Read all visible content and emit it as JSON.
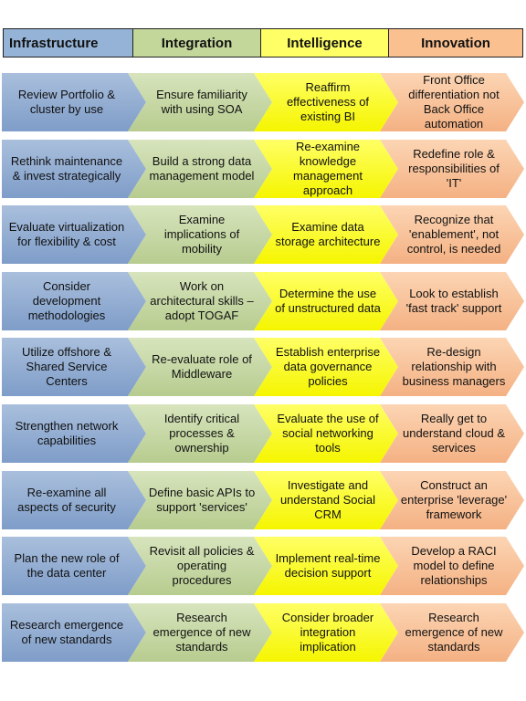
{
  "header": {
    "columns": [
      {
        "label": "Infrastructure",
        "color": "#95b3d7"
      },
      {
        "label": "Integration",
        "color": "#c4d79b"
      },
      {
        "label": "Intelligence",
        "color": "#ffff66"
      },
      {
        "label": "Innovation",
        "color": "#fac090"
      }
    ]
  },
  "rows": [
    [
      "Review Portfolio & cluster by use",
      "Ensure familiarity with using SOA",
      "Reaffirm effectiveness of existing BI",
      "Front Office differentiation not Back Office automation"
    ],
    [
      "Rethink maintenance & invest strategically",
      "Build a strong data management model",
      "Re-examine knowledge management approach",
      "Redefine role & responsibilities of 'IT'"
    ],
    [
      "Evaluate virtualization for flexibility & cost",
      "Examine implications of mobility",
      "Examine data storage architecture",
      "Recognize that 'enablement', not control, is needed"
    ],
    [
      "Consider development methodologies",
      "Work on architectural skills – adopt TOGAF",
      "Determine the use of unstructured data",
      "Look to establish 'fast track' support"
    ],
    [
      "Utilize offshore & Shared Service Centers",
      "Re-evaluate role of Middleware",
      "Establish enterprise data governance policies",
      "Re-design relationship with business managers"
    ],
    [
      "Strengthen network capabilities",
      "Identify critical processes & ownership",
      "Evaluate the use of social networking tools",
      "Really get to understand cloud & services"
    ],
    [
      "Re-examine all aspects of security",
      "Define basic APIs to support 'services'",
      "Investigate and understand Social CRM",
      "Construct an enterprise 'leverage' framework"
    ],
    [
      "Plan the new role of the data center",
      "Revisit all policies & operating procedures",
      "Implement real-time decision support",
      "Develop a RACI model to define relationships"
    ],
    [
      "Research emergence of new standards",
      "Research emergence of new standards",
      "Consider broader integration implication",
      "Research emergence of new standards"
    ]
  ]
}
